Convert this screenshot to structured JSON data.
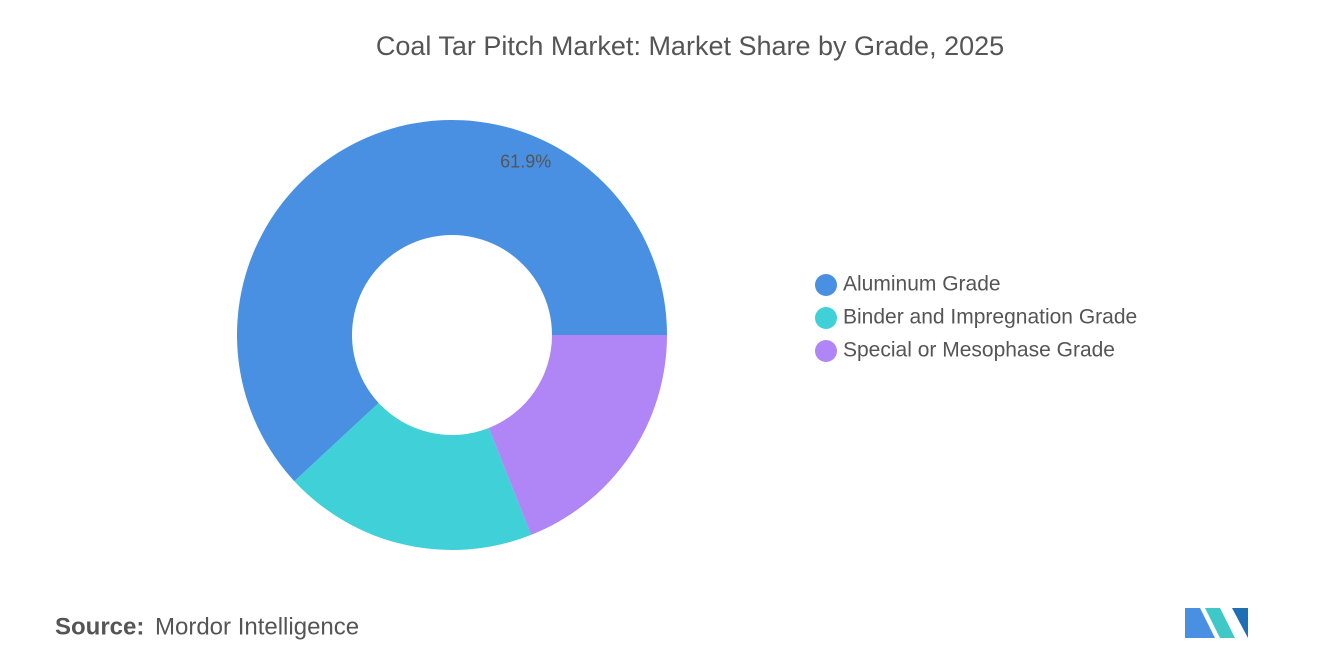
{
  "chart_data": {
    "type": "donut",
    "title": "Coal Tar Pitch Market: Market Share by Grade, 2025",
    "categories": [
      "Aluminum Grade",
      "Binder and Impregnation Grade",
      "Special or Mesophase Grade"
    ],
    "values": [
      61.9,
      19.1,
      19.0
    ],
    "value_labels": [
      "61.9%",
      null,
      null
    ],
    "colors": [
      "#4a90e2",
      "#40d0d8",
      "#b085f5"
    ],
    "legend": "right"
  },
  "footer": {
    "source_label": "Source:",
    "source": "Mordor Intelligence"
  }
}
